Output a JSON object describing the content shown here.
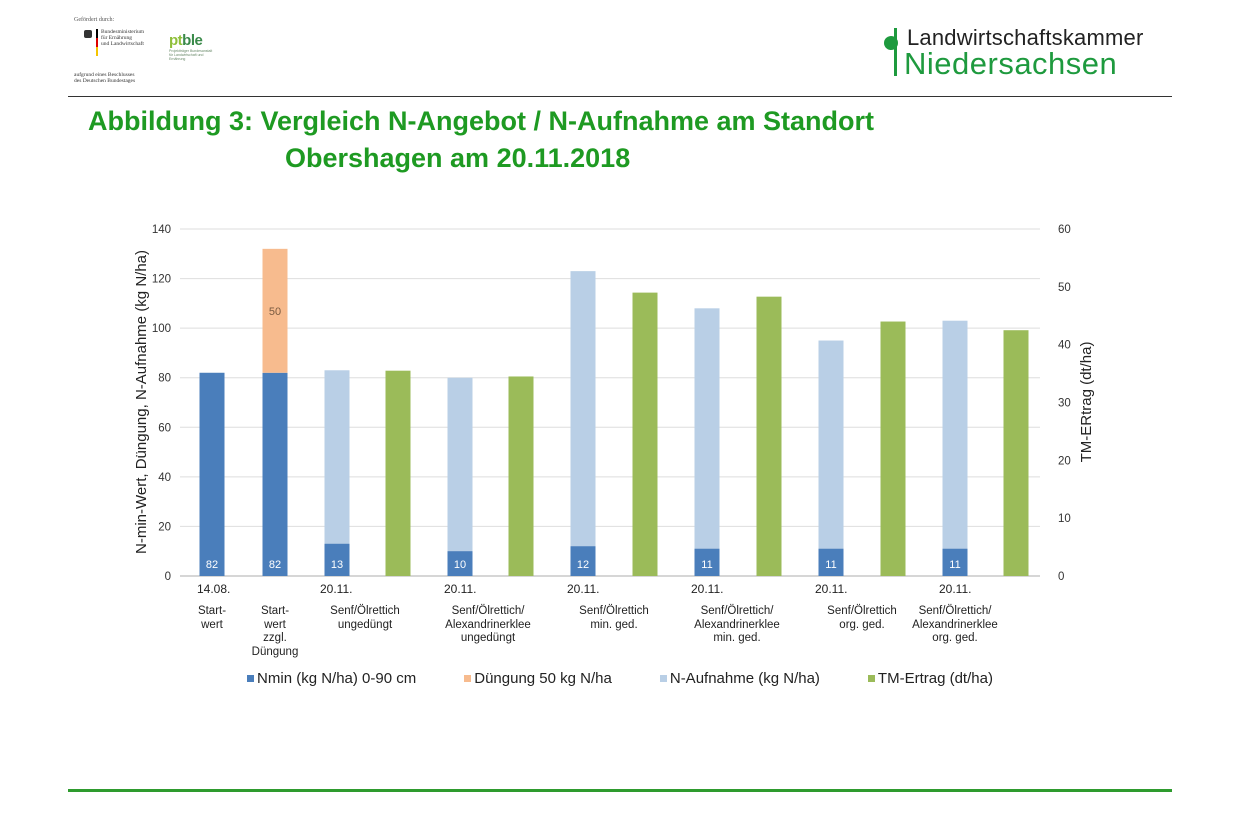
{
  "header": {
    "funder": {
      "label": "Gefördert durch:",
      "ministry": [
        "Bundesministerium",
        "für Ernährung",
        "und Landwirtschaft"
      ],
      "note": [
        "aufgrund eines Beschlusses",
        "des Deutschen Bundestages"
      ]
    },
    "ptble": {
      "logo_a": "pt",
      "logo_b": "ble",
      "subtitle": "Projektträger Bundesanstalt für Landwirtschaft und Ernährung"
    },
    "org": {
      "line1": "Landwirtschaftskammer",
      "line2": "Niedersachsen"
    }
  },
  "title": {
    "line1": "Abbildung 3: Vergleich N-Angebot / N-Aufnahme am Standort",
    "line2": "Obershagen am 20.11.2018"
  },
  "colors": {
    "nmin": "#4a7ebb",
    "duengung": "#f7bb8e",
    "naufnahme": "#b9cfe6",
    "tm": "#9bbb59",
    "title": "#1e9a22"
  },
  "chart_data": {
    "type": "bar",
    "title": "Vergleich N-Angebot / N-Aufnahme am Standort Obershagen am 20.11.2018",
    "ylabel": "N-min-Wert, Düngung, N-Aufnahme (kg N/ha)",
    "y2label": "TM-ERtrag (dt/ha)",
    "ylim": [
      0,
      140
    ],
    "y2lim": [
      0,
      60
    ],
    "yticks": [
      0,
      20,
      40,
      60,
      80,
      100,
      120,
      140
    ],
    "y2ticks": [
      0,
      10,
      20,
      30,
      40,
      50,
      60
    ],
    "grid": true,
    "legend_position": "bottom",
    "categories": [
      {
        "date": "14.08.",
        "label": [
          "Start-",
          "wert"
        ]
      },
      {
        "date": "",
        "label": [
          "Start-",
          "wert",
          "zzgl.",
          "Düngung"
        ]
      },
      {
        "date": "20.11.",
        "label": [
          "Senf/Ölrettich",
          "ungedüngt"
        ]
      },
      {
        "date": "20.11.",
        "label": [
          "Senf/Ölrettich/",
          "Alexandrinerklee",
          "ungedüngt"
        ]
      },
      {
        "date": "20.11.",
        "label": [
          "Senf/Ölrettich",
          "min. ged."
        ]
      },
      {
        "date": "20.11.",
        "label": [
          "Senf/Ölrettich/",
          "Alexandrinerklee",
          "min. ged."
        ]
      },
      {
        "date": "20.11.",
        "label": [
          "Senf/Ölrettich",
          "org. ged."
        ]
      },
      {
        "date": "20.11.",
        "label": [
          "Senf/Ölrettich/",
          "Alexandrinerklee",
          "org. ged."
        ]
      }
    ],
    "series": [
      {
        "name": "Nmin (kg N/ha) 0-90 cm",
        "axis": "left",
        "values": [
          82,
          82,
          13,
          10,
          12,
          11,
          11,
          11
        ],
        "labels": [
          "82",
          "82",
          "13",
          "10",
          "12",
          "11",
          "11",
          "11"
        ]
      },
      {
        "name": "Düngung 50 kg N/ha",
        "axis": "left",
        "stacked_on": "Nmin",
        "values": [
          null,
          50,
          null,
          null,
          null,
          null,
          null,
          null
        ],
        "labels": [
          "",
          "50",
          "",
          "",
          "",
          "",
          "",
          ""
        ]
      },
      {
        "name": "N-Aufnahme (kg N/ha)",
        "axis": "left",
        "values": [
          null,
          null,
          83,
          80,
          123,
          108,
          95,
          103
        ]
      },
      {
        "name": "TM-Ertrag (dt/ha)",
        "axis": "right",
        "values": [
          null,
          null,
          35.5,
          34.5,
          49,
          48.3,
          44,
          42.5
        ]
      }
    ]
  }
}
